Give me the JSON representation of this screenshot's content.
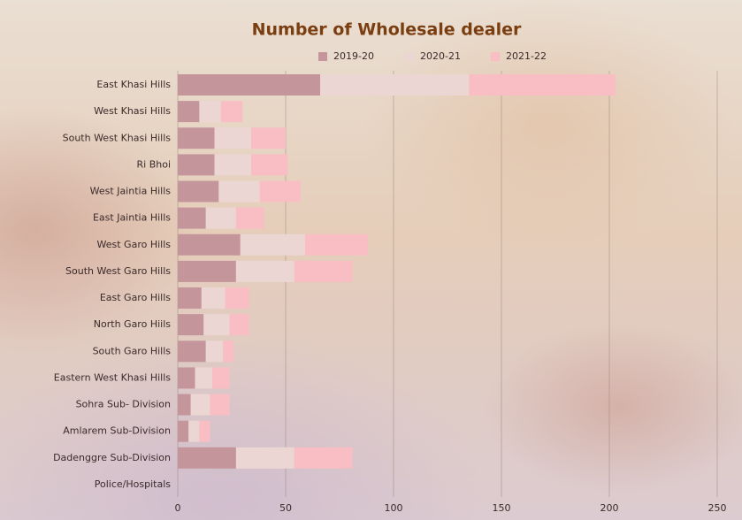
{
  "chart_data": {
    "type": "stacked-barh",
    "title": "Number of Wholesale dealer",
    "categories": [
      "East Khasi Hills",
      "West Khasi Hills",
      "South West Khasi Hills",
      "Ri Bhoi",
      "West Jaintia Hills",
      "East Jaintia Hills",
      "West Garo Hills",
      "South West Garo Hills",
      "East Garo Hills",
      "North Garo Hiils",
      "South Garo Hills",
      "Eastern West Khasi Hills",
      "Sohra Sub- Division",
      "Amlarem Sub-Division",
      "Dadenggre Sub-Division",
      "Police/Hospitals"
    ],
    "series": [
      {
        "name": "2019-20",
        "color": "#c4959b",
        "values": [
          66,
          10,
          17,
          17,
          19,
          13,
          29,
          27,
          11,
          12,
          13,
          8,
          6,
          5,
          27,
          0
        ]
      },
      {
        "name": "2020-21",
        "color": "#ecd6d3",
        "values": [
          69,
          10,
          17,
          17,
          19,
          14,
          30,
          27,
          11,
          12,
          8,
          8,
          9,
          5,
          27,
          0
        ]
      },
      {
        "name": "2021-22",
        "color": "#f9bec3",
        "values": [
          68,
          10,
          16,
          17,
          19,
          13,
          29,
          27,
          11,
          9,
          5,
          8,
          9,
          5,
          27,
          0
        ]
      }
    ],
    "xlim": [
      0,
      250
    ],
    "xticks": [
      0,
      50,
      100,
      150,
      200,
      250
    ],
    "grid": true,
    "legend": "top"
  }
}
